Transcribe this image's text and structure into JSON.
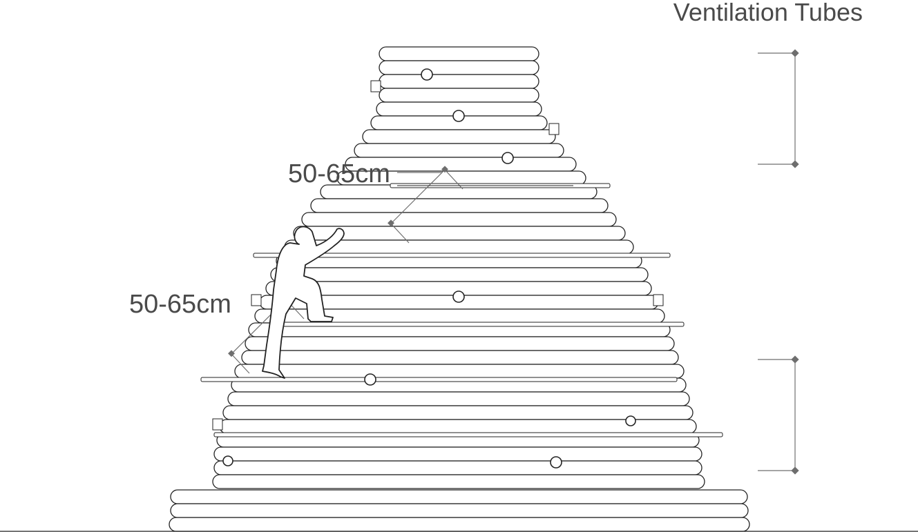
{
  "figure": {
    "heading": "Ventilation Tubes",
    "dimension_upper": "50-65cm",
    "dimension_lower": "50-65cm"
  },
  "colors": {
    "line": "#222222",
    "dimension": "#6e6e6e",
    "text": "#4a4a4a",
    "background": "#ffffff"
  }
}
